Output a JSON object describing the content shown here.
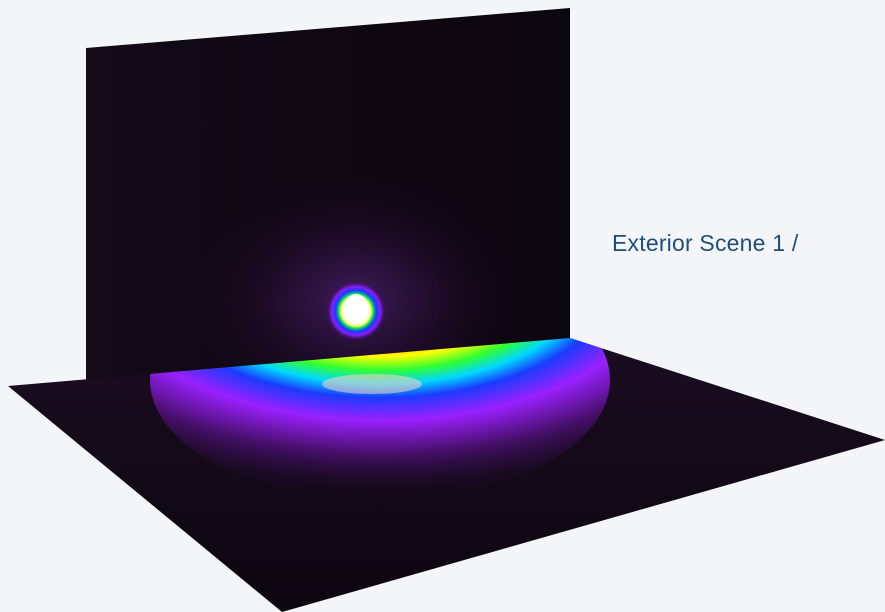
{
  "scene": {
    "label": "Exterior Scene 1 /",
    "label_color": "#1f4e79",
    "background": "#f3f5f8",
    "wall_color": "#0e0710",
    "floor_color": "#100812",
    "false_color_map": [
      "#ffffff",
      "#ffff00",
      "#ff0000",
      "#ff8800",
      "#00ff00",
      "#0000ff",
      "#8800ff",
      "#220033"
    ]
  }
}
